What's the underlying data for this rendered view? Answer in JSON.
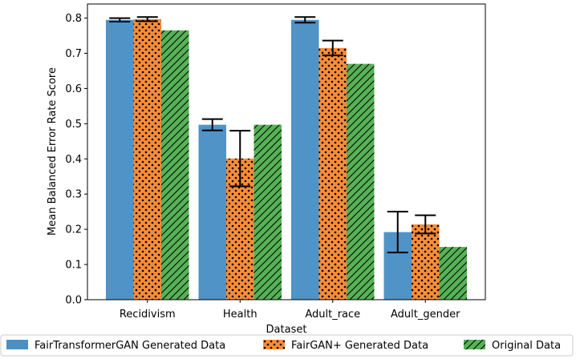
{
  "chart_data": {
    "type": "bar",
    "title": "",
    "xlabel": "Dataset",
    "ylabel": "Mean Balanced Error Rate Score",
    "categories": [
      "Recidivism",
      "Health",
      "Adult_race",
      "Adult_gender"
    ],
    "ylim": [
      0,
      0.84
    ],
    "yticks": [
      0.0,
      0.1,
      0.2,
      0.3,
      0.4,
      0.5,
      0.6,
      0.7,
      0.8
    ],
    "ytick_labels": [
      "0.0",
      "0.1",
      "0.2",
      "0.3",
      "0.4",
      "0.5",
      "0.6",
      "0.7",
      "0.8"
    ],
    "grid": false,
    "legend_position": "bottom",
    "series": [
      {
        "name": "FairTransformerGAN Generated Data",
        "color": "#4a90c4",
        "pattern": "solid",
        "values": [
          0.795,
          0.497,
          0.795,
          0.192
        ],
        "errors": [
          0.005,
          0.016,
          0.008,
          0.058
        ]
      },
      {
        "name": "FairGAN+ Generated Data",
        "color": "#f98d3a",
        "pattern": "dots",
        "values": [
          0.797,
          0.401,
          0.715,
          0.214
        ],
        "errors": [
          0.006,
          0.079,
          0.021,
          0.026
        ]
      },
      {
        "name": "Original Data",
        "color": "#57b257",
        "pattern": "hatch",
        "values": [
          0.765,
          0.497,
          0.67,
          0.15
        ],
        "errors": [
          0,
          0,
          0,
          0
        ]
      }
    ]
  }
}
